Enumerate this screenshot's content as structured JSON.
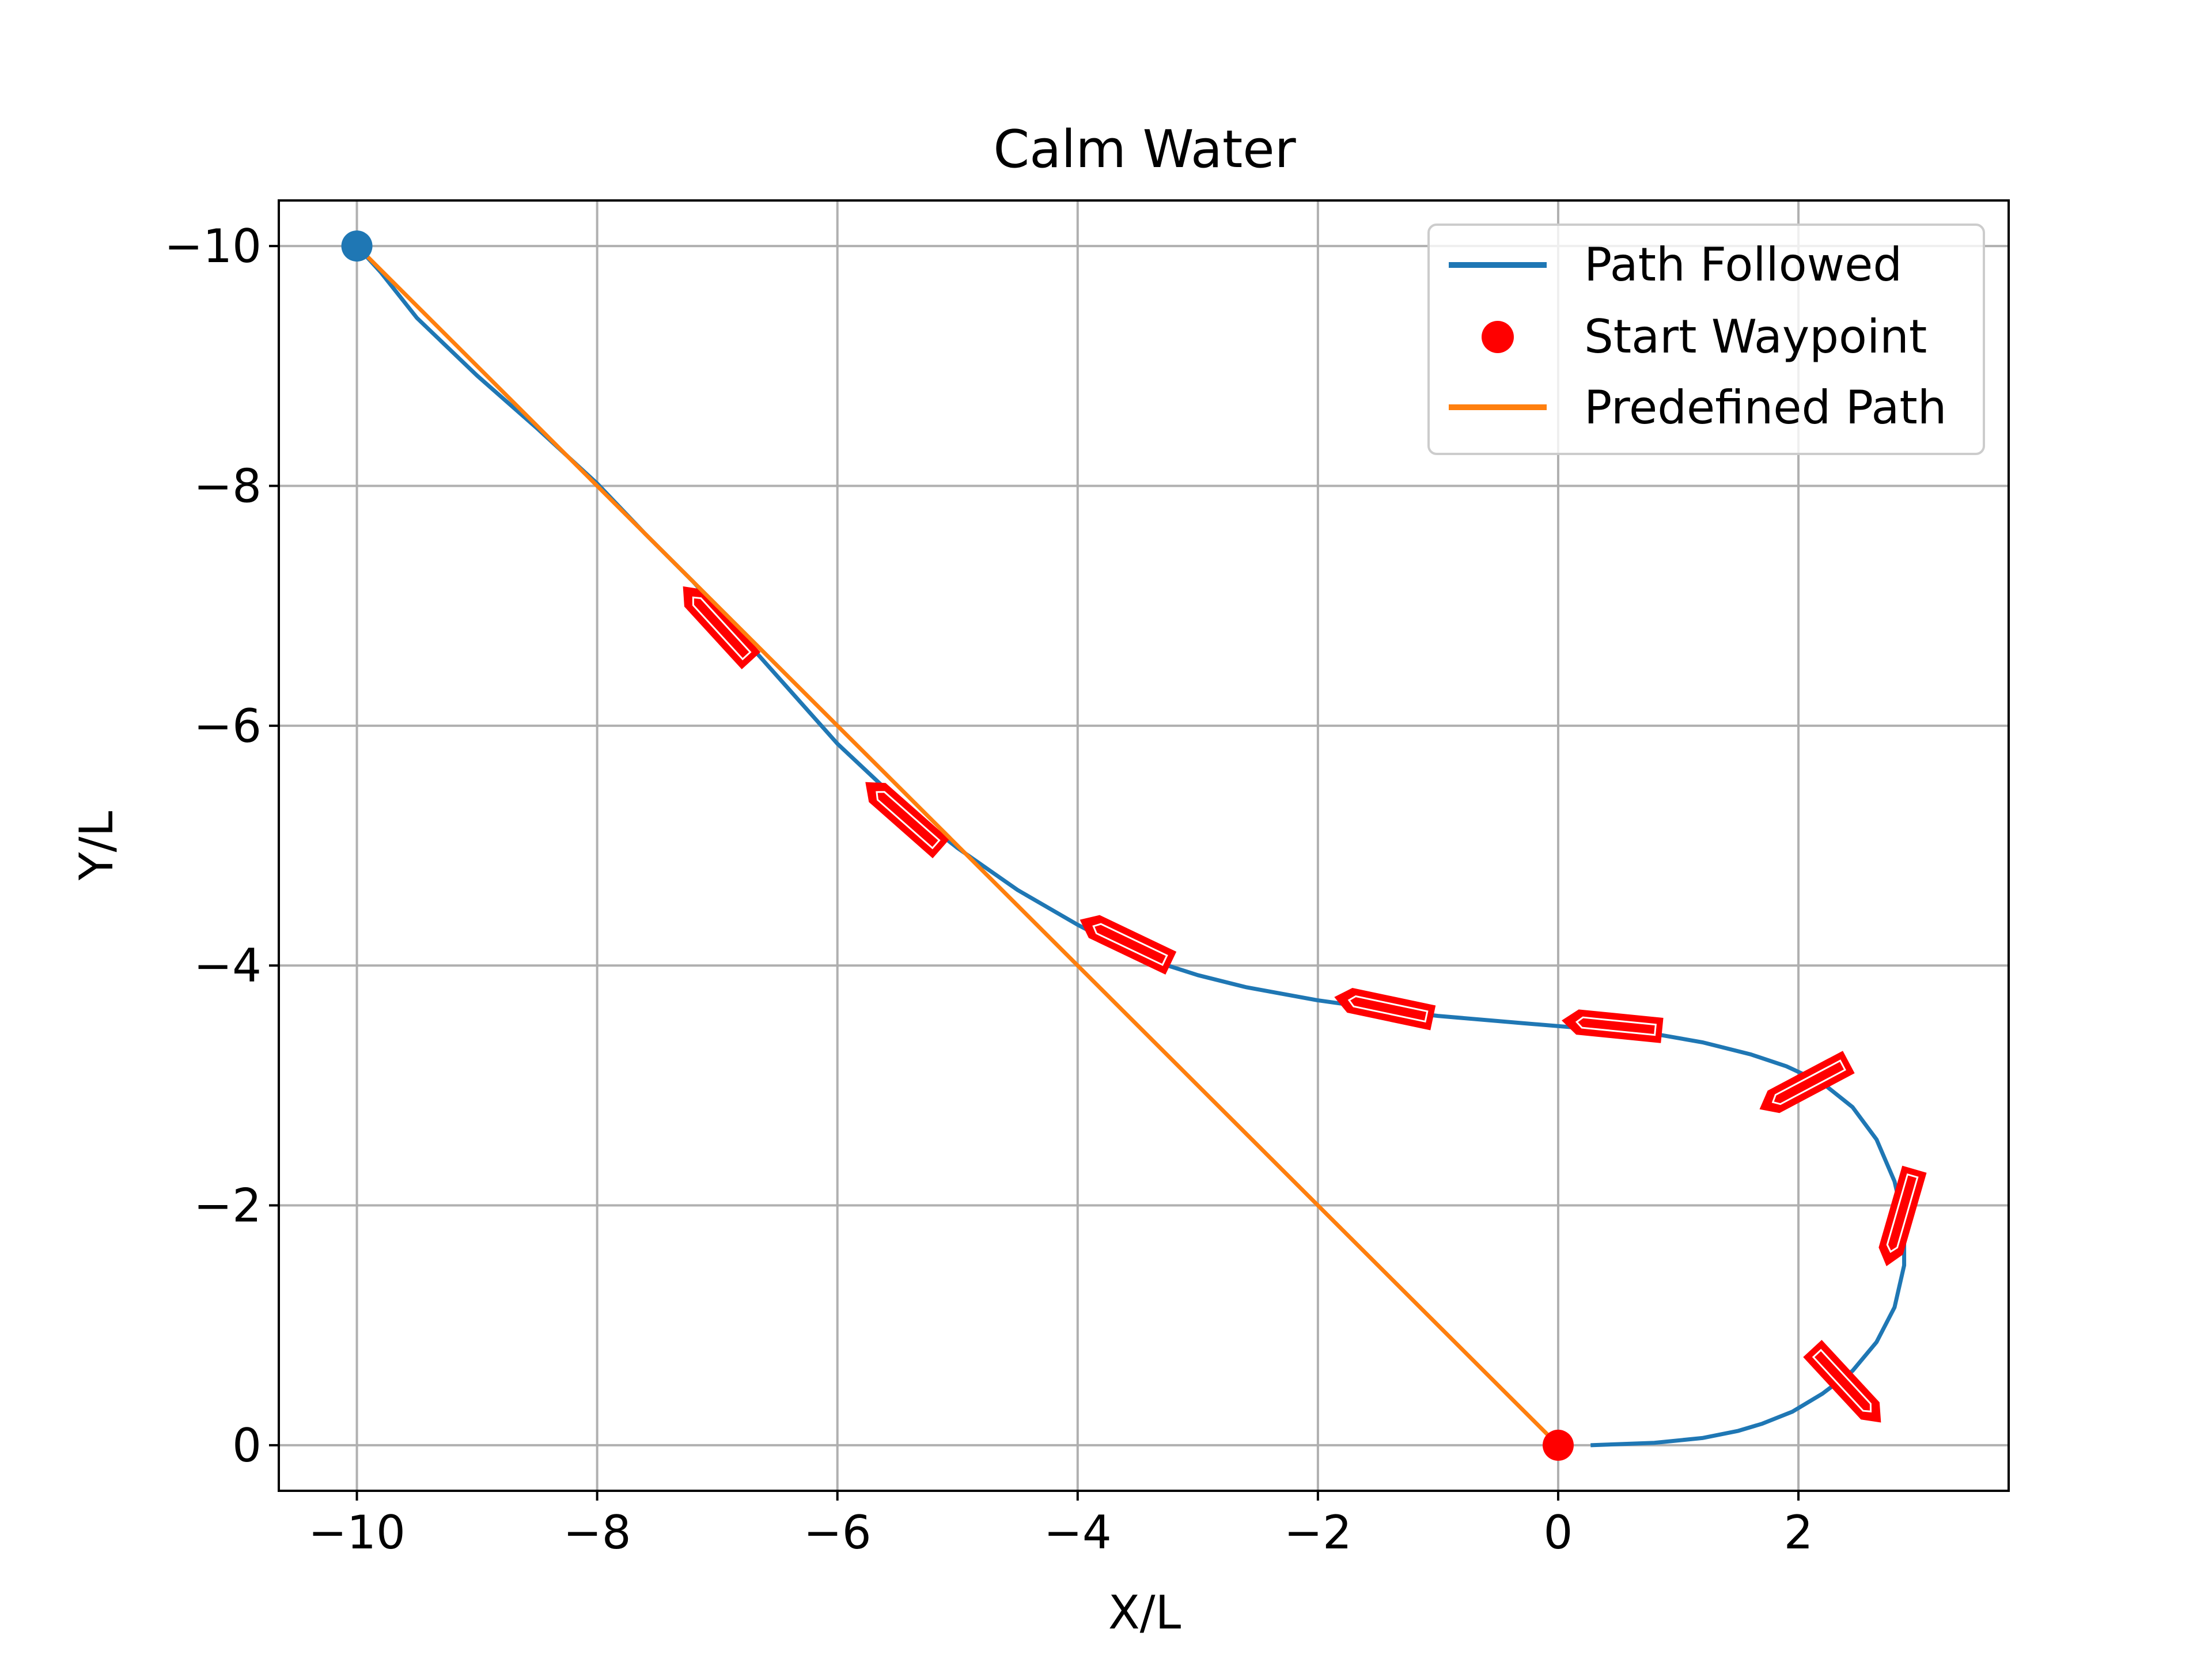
{
  "chart_data": {
    "type": "line",
    "title": "Calm Water",
    "xlabel": "X/L",
    "ylabel": "Y/L",
    "xlim": [
      -10.65,
      3.75
    ],
    "ylim": [
      0.38,
      -10.38
    ],
    "y_inverted": true,
    "grid": true,
    "legend_position": "top-right",
    "xticks": [
      -10,
      -8,
      -6,
      -4,
      -2,
      0,
      2
    ],
    "yticks": [
      -10,
      -8,
      -6,
      -4,
      -2,
      0
    ],
    "xtick_labels": [
      "−10",
      "−8",
      "−6",
      "−4",
      "−2",
      "0",
      "2"
    ],
    "ytick_labels": [
      "−10",
      "−8",
      "−6",
      "−4",
      "−2",
      "0"
    ],
    "legend": [
      {
        "label": "Path Followed",
        "kind": "line",
        "color": "#1f77b4"
      },
      {
        "label": "Start Waypoint",
        "kind": "marker",
        "color": "#ff0000"
      },
      {
        "label": "Predefined Path",
        "kind": "line",
        "color": "#ff7f0e"
      }
    ],
    "series": [
      {
        "name": "Path Followed",
        "color": "#1f77b4",
        "points": [
          [
            0.27,
            0
          ],
          [
            0.8,
            -0.02
          ],
          [
            1.2,
            -0.06
          ],
          [
            1.5,
            -0.12
          ],
          [
            1.7,
            -0.18
          ],
          [
            1.95,
            -0.28
          ],
          [
            2.2,
            -0.43
          ],
          [
            2.45,
            -0.62
          ],
          [
            2.65,
            -0.86
          ],
          [
            2.8,
            -1.15
          ],
          [
            2.88,
            -1.5
          ],
          [
            2.88,
            -1.85
          ],
          [
            2.8,
            -2.2
          ],
          [
            2.65,
            -2.55
          ],
          [
            2.45,
            -2.82
          ],
          [
            2.2,
            -3.02
          ],
          [
            1.9,
            -3.16
          ],
          [
            1.6,
            -3.26
          ],
          [
            1.2,
            -3.36
          ],
          [
            0.8,
            -3.43
          ],
          [
            0.3,
            -3.47
          ],
          [
            -0.3,
            -3.52
          ],
          [
            -1.0,
            -3.58
          ],
          [
            -1.5,
            -3.64
          ],
          [
            -2.0,
            -3.71
          ],
          [
            -2.6,
            -3.82
          ],
          [
            -3.0,
            -3.92
          ],
          [
            -3.5,
            -4.08
          ],
          [
            -4.0,
            -4.34
          ],
          [
            -4.5,
            -4.63
          ],
          [
            -5.0,
            -4.98
          ],
          [
            -5.5,
            -5.38
          ],
          [
            -6.0,
            -5.85
          ],
          [
            -6.4,
            -6.3
          ],
          [
            -6.8,
            -6.75
          ],
          [
            -7.2,
            -7.2
          ],
          [
            -7.6,
            -7.6
          ],
          [
            -8.0,
            -8.02
          ],
          [
            -8.5,
            -8.48
          ],
          [
            -9.0,
            -8.92
          ],
          [
            -9.5,
            -9.4
          ],
          [
            -9.8,
            -9.78
          ],
          [
            -10,
            -10
          ]
        ]
      },
      {
        "name": "Predefined Path",
        "color": "#ff7f0e",
        "points": [
          [
            -10,
            -10
          ],
          [
            0,
            0
          ]
        ]
      }
    ],
    "markers": [
      {
        "name": "Start Waypoint",
        "x": 0,
        "y": 0,
        "color": "#ff0000"
      },
      {
        "name": "End Waypoint",
        "x": -10,
        "y": -10,
        "color": "#1f77b4"
      }
    ],
    "vessels": [
      {
        "x": -7.0,
        "y": -6.85,
        "heading_deg": -132.5
      },
      {
        "x": -5.45,
        "y": -5.25,
        "heading_deg": -138.6
      },
      {
        "x": -3.6,
        "y": -4.2,
        "heading_deg": -154.5
      },
      {
        "x": -1.45,
        "y": -3.65,
        "heading_deg": -168.1
      },
      {
        "x": 0.45,
        "y": -3.5,
        "heading_deg": -174.3
      },
      {
        "x": 2.05,
        "y": -3.0,
        "heading_deg": 152.1
      },
      {
        "x": 2.85,
        "y": -1.9,
        "heading_deg": 106.1
      },
      {
        "x": 2.4,
        "y": -0.5,
        "heading_deg": 47.2
      }
    ]
  }
}
